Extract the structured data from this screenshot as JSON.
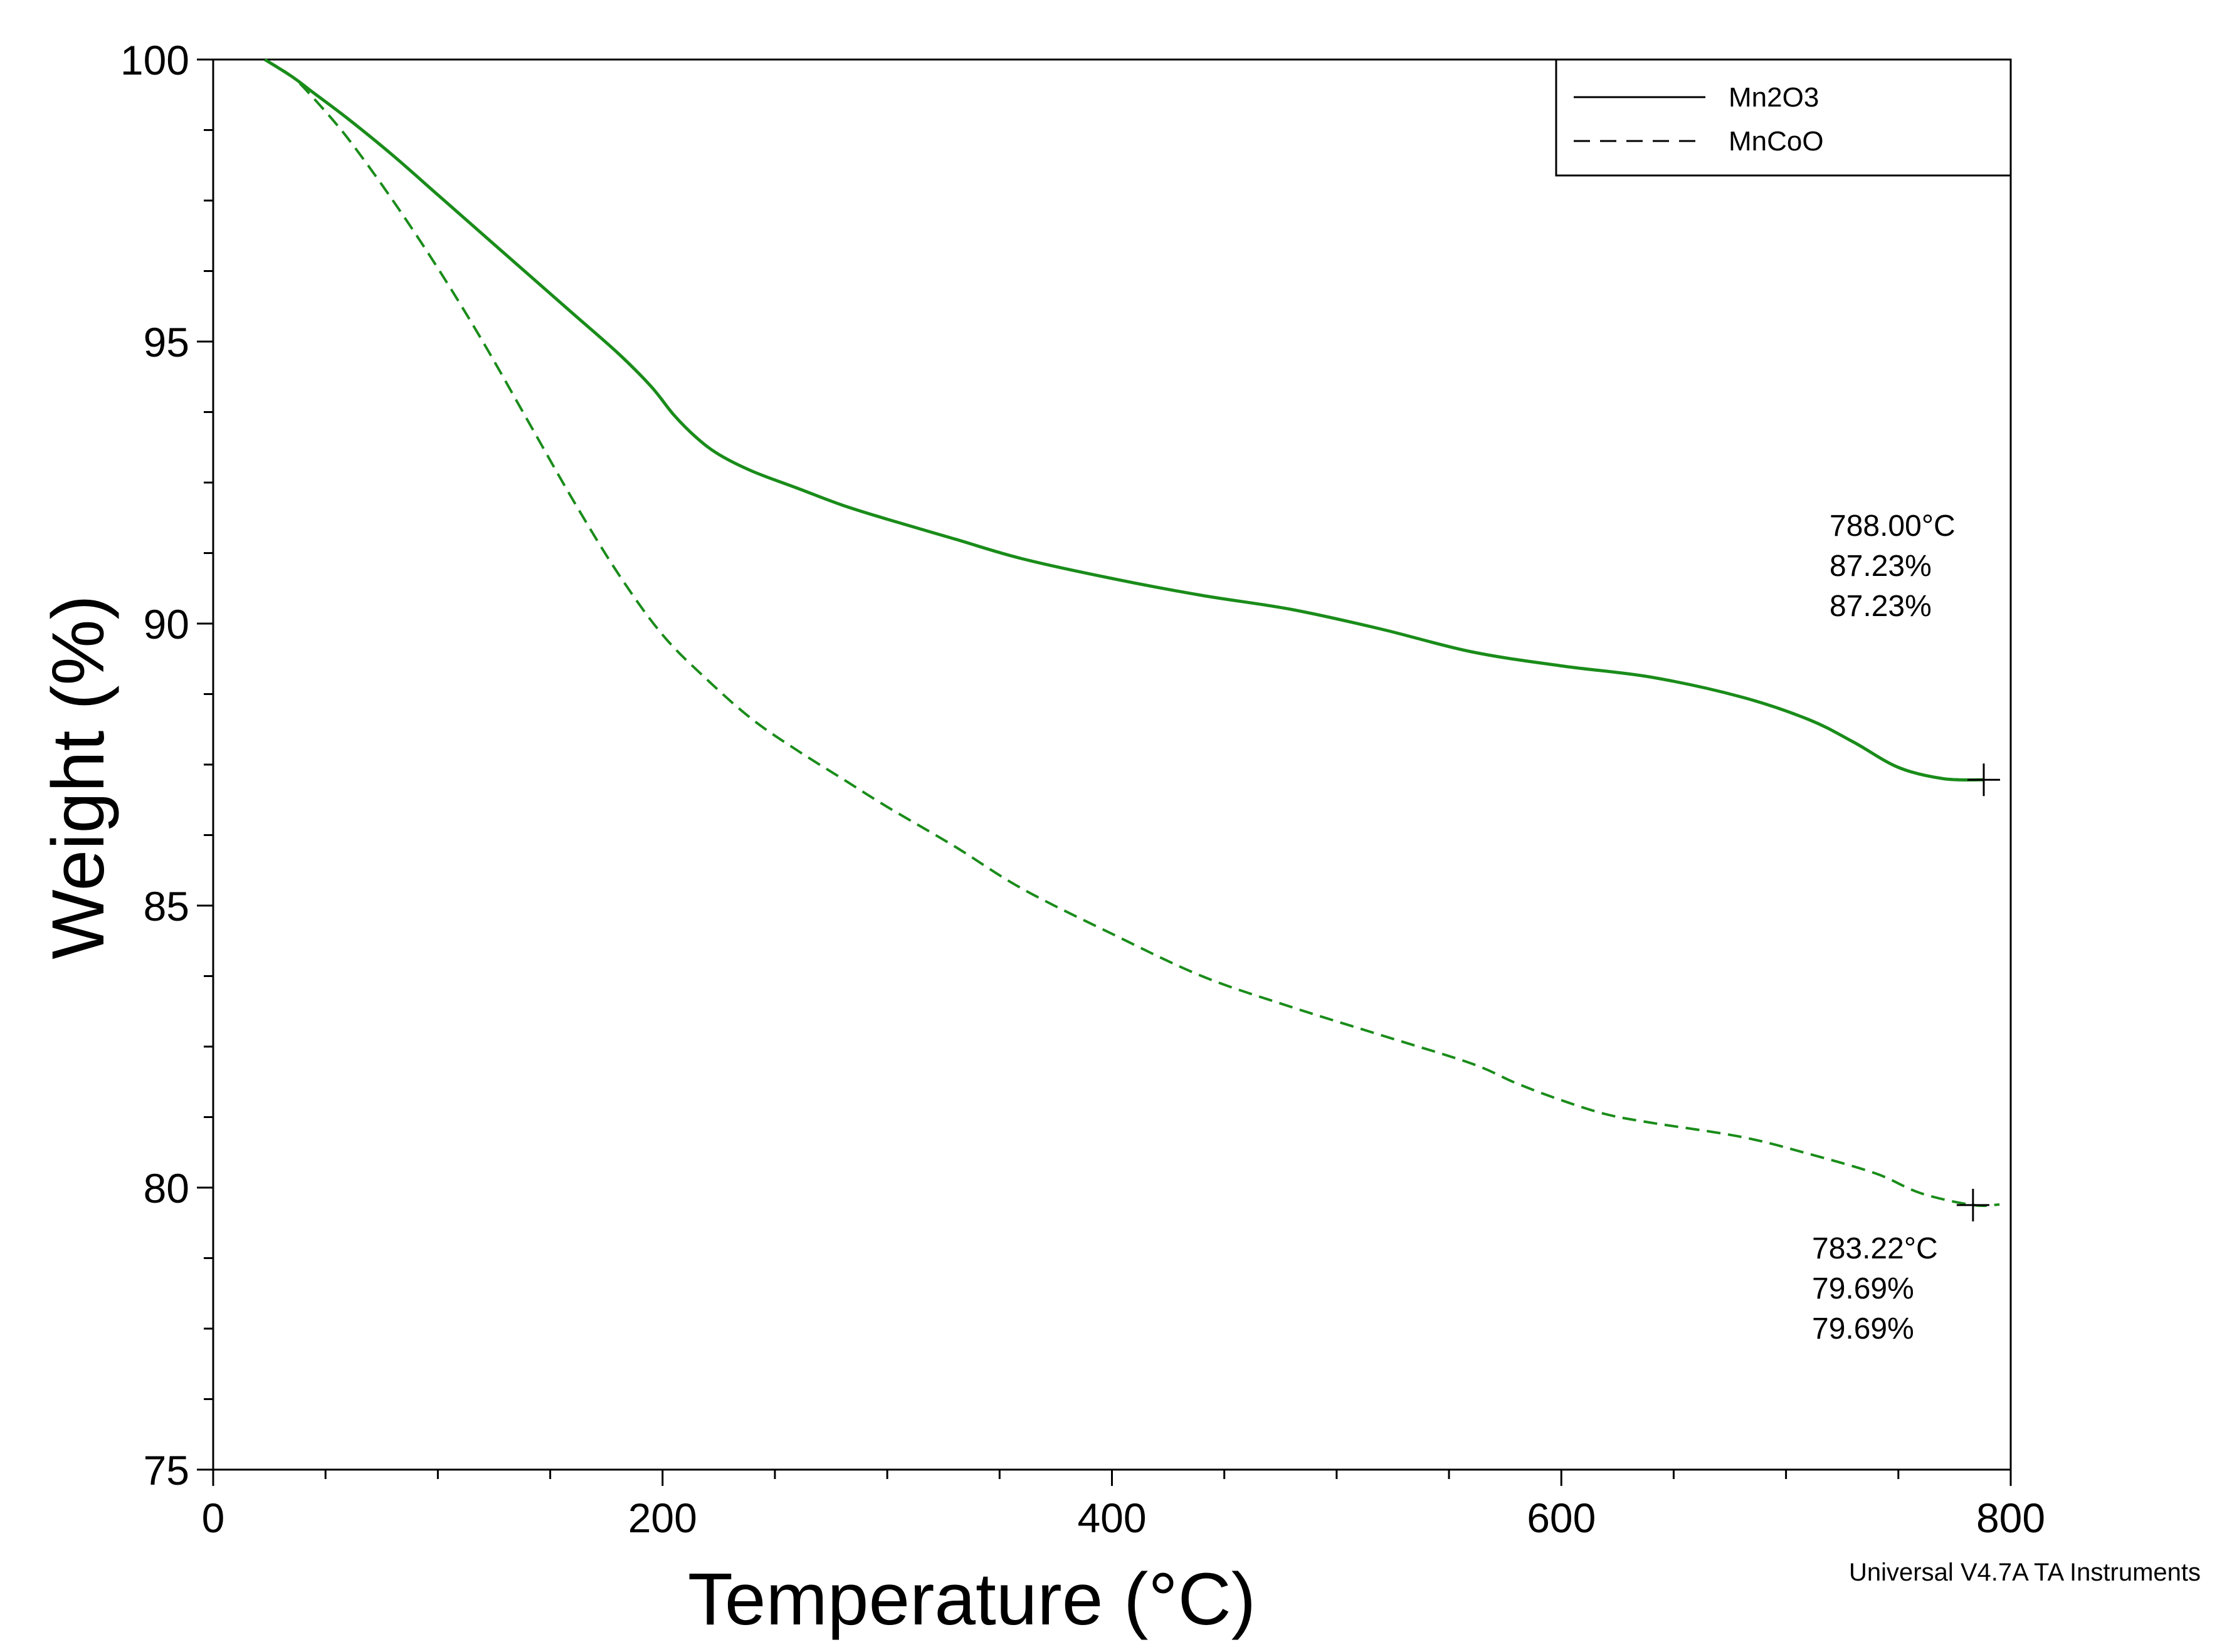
{
  "chart_data": {
    "type": "line",
    "title": "",
    "xlabel": "Temperature (°C)",
    "ylabel": "Weight (%)",
    "xlim": [
      0,
      800
    ],
    "ylim": [
      75,
      100
    ],
    "x_ticks": [
      0,
      200,
      400,
      600,
      800
    ],
    "x_tick_labels": [
      "0",
      "200",
      "400",
      "600",
      "800"
    ],
    "x_minor_step": 50,
    "y_ticks": [
      75,
      80,
      85,
      90,
      95,
      100
    ],
    "y_tick_labels": [
      "75",
      "80",
      "85",
      "90",
      "95",
      "100"
    ],
    "y_minor_step": 1.25,
    "grid": false,
    "legend_position": "top-right",
    "line_color": "#1a8c1a",
    "series": [
      {
        "name": "Mn2O3",
        "style": "solid",
        "x": [
          23,
          35,
          45,
          60,
          80,
          100,
          120,
          140,
          160,
          180,
          195,
          205,
          215,
          225,
          240,
          260,
          280,
          300,
          330,
          360,
          400,
          440,
          480,
          520,
          560,
          600,
          640,
          680,
          710,
          730,
          750,
          770,
          788
        ],
        "y": [
          100,
          99.7,
          99.4,
          98.95,
          98.3,
          97.6,
          96.9,
          96.2,
          95.5,
          94.8,
          94.2,
          93.7,
          93.3,
          93.0,
          92.7,
          92.4,
          92.1,
          91.85,
          91.5,
          91.15,
          90.8,
          90.5,
          90.25,
          89.9,
          89.5,
          89.25,
          89.05,
          88.7,
          88.3,
          87.9,
          87.45,
          87.25,
          87.23
        ]
      },
      {
        "name": "MnCoO",
        "style": "dashed",
        "x": [
          23,
          35,
          45,
          60,
          80,
          100,
          120,
          140,
          160,
          180,
          200,
          220,
          240,
          260,
          280,
          300,
          330,
          360,
          400,
          440,
          480,
          520,
          560,
          580,
          600,
          620,
          640,
          680,
          710,
          740,
          760,
          783.22,
          795
        ],
        "y": [
          100,
          99.7,
          99.3,
          98.6,
          97.5,
          96.3,
          95.0,
          93.6,
          92.2,
          90.9,
          89.8,
          89.0,
          88.3,
          87.75,
          87.25,
          86.75,
          86.05,
          85.3,
          84.5,
          83.75,
          83.2,
          82.7,
          82.2,
          81.85,
          81.55,
          81.3,
          81.15,
          80.9,
          80.6,
          80.25,
          79.9,
          79.69,
          79.7
        ]
      }
    ],
    "annotations": [
      {
        "series": "Mn2O3",
        "x": 788.0,
        "y": 87.23,
        "lines": [
          "788.00°C",
          "87.23%",
          "87.23%"
        ]
      },
      {
        "series": "MnCoO",
        "x": 783.22,
        "y": 79.69,
        "lines": [
          "783.22°C",
          "79.69%",
          "79.69%"
        ]
      }
    ],
    "credit": "Universal V4.7A TA Instruments"
  }
}
